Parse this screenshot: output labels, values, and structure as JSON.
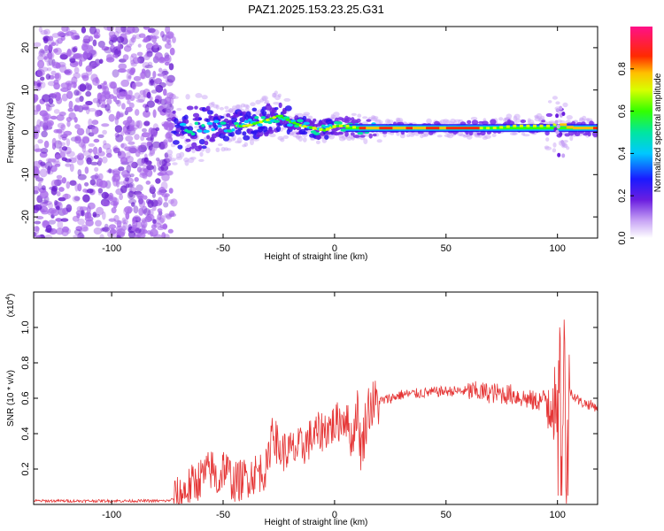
{
  "title": "PAZ1.2025.153.23.25.G31",
  "colors": {
    "snr_line": "#e53535",
    "noise_dot": "#a868ea",
    "noise_dot_dark": "#6a1ed0",
    "axis": "#000000"
  },
  "chart_data": [
    {
      "type": "heatmap",
      "name": "spectrogram",
      "xlabel": "Height of straight line (km)",
      "ylabel": "Frequency (Hz)",
      "xlim": [
        -135,
        118
      ],
      "ylim": [
        -25,
        25
      ],
      "xticks": [
        -100,
        -50,
        0,
        50,
        100
      ],
      "xtick_labels": [
        "-100",
        "-50",
        "0",
        "50",
        "100"
      ],
      "yticks": [
        -20,
        -10,
        0,
        10,
        20
      ],
      "ytick_labels": [
        "-20",
        "-10",
        "0",
        "10",
        "20"
      ],
      "colorbar": {
        "label": "Normalized spectral amplitude",
        "range": [
          0,
          1
        ],
        "ticks": [
          0.0,
          0.2,
          0.4,
          0.6,
          0.8
        ],
        "tick_labels": [
          "0.0",
          "0.2",
          "0.4",
          "0.6",
          "0.8"
        ],
        "colormap": "rainbow (white-violet-blue-cyan-green-yellow-red-magenta)"
      },
      "ridge_frequency_hz": {
        "x": [
          -70,
          -60,
          -50,
          -40,
          -30,
          -25,
          -20,
          -15,
          -10,
          -5,
          0,
          5,
          10,
          20,
          30,
          40,
          50,
          60,
          70,
          80,
          90,
          95,
          100,
          105,
          110,
          118
        ],
        "y": [
          0.5,
          1.0,
          1.5,
          1.5,
          3.0,
          4.0,
          2.5,
          1.5,
          1.0,
          0.5,
          1.5,
          1.5,
          1.0,
          1.0,
          1.0,
          1.0,
          1.0,
          1.0,
          1.0,
          1.5,
          1.5,
          1.5,
          2.0,
          1.0,
          1.0,
          1.0
        ]
      },
      "noise_region_km": [
        -135,
        -72
      ]
    },
    {
      "type": "line",
      "name": "snr",
      "xlabel": "Height of straight line (km)",
      "ylabel": "SNR (10 * v/v)",
      "y_multiplier_label": "(x10",
      "y_multiplier_exp": "4",
      "y_multiplier_close": ")",
      "xlim": [
        -135,
        118
      ],
      "ylim": [
        0,
        1.2
      ],
      "xticks": [
        -100,
        -50,
        0,
        50,
        100
      ],
      "xtick_labels": [
        "-100",
        "-50",
        "0",
        "50",
        "100"
      ],
      "yticks": [
        0.2,
        0.4,
        0.6,
        0.8,
        1.0
      ],
      "ytick_labels": [
        "0.2",
        "0.4",
        "0.6",
        "0.8",
        "1.0"
      ],
      "series": [
        {
          "name": "SNR",
          "x": [
            -135,
            -110,
            -90,
            -75,
            -70,
            -65,
            -60,
            -55,
            -52,
            -50,
            -45,
            -40,
            -35,
            -30,
            -28,
            -25,
            -20,
            -15,
            -10,
            -5,
            0,
            5,
            8,
            10,
            12,
            15,
            20,
            25,
            30,
            40,
            50,
            60,
            70,
            80,
            85,
            90,
            95,
            98,
            100,
            101,
            102,
            103,
            104,
            105,
            110,
            118
          ],
          "y": [
            0.02,
            0.02,
            0.02,
            0.02,
            0.04,
            0.1,
            0.15,
            0.2,
            0.12,
            0.22,
            0.12,
            0.15,
            0.18,
            0.2,
            0.45,
            0.3,
            0.3,
            0.32,
            0.38,
            0.42,
            0.45,
            0.5,
            0.35,
            0.55,
            0.3,
            0.55,
            0.58,
            0.6,
            0.62,
            0.63,
            0.64,
            0.64,
            0.63,
            0.62,
            0.6,
            0.58,
            0.6,
            0.62,
            0.4,
            0.9,
            0.3,
            1.1,
            0.05,
            0.65,
            0.58,
            0.55
          ]
        }
      ]
    }
  ]
}
